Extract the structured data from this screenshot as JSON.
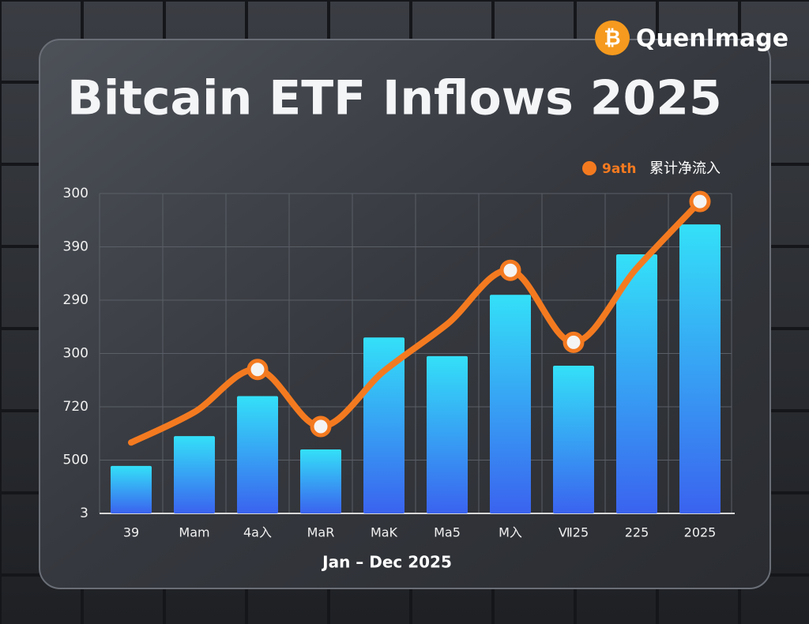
{
  "chart_data": {
    "type": "bar-line",
    "title": "Bitcain ETF Inflows 2025",
    "watermark": "QuenImage",
    "xlabel": "Jan – Dec 2025",
    "categories": [
      "39",
      "Mam",
      "4a入",
      "MaR",
      "MaK",
      "Ma5",
      "M入",
      "Ⅶ25",
      "225",
      "2025"
    ],
    "ylim": [
      0,
      6
    ],
    "yticks": [
      {
        "value": 0,
        "label": "3"
      },
      {
        "value": 1,
        "label": "500"
      },
      {
        "value": 2,
        "label": "720"
      },
      {
        "value": 3,
        "label": "300"
      },
      {
        "value": 4,
        "label": "290"
      },
      {
        "value": 5,
        "label": "390"
      },
      {
        "value": 6,
        "label": "300"
      }
    ],
    "grid": true,
    "legend_note": "累计净流入",
    "series": [
      {
        "name": "累计净流入",
        "kind": "bar",
        "color": "#2f8cf5",
        "values": [
          0.89,
          1.45,
          2.2,
          1.2,
          3.3,
          2.95,
          4.1,
          2.77,
          4.86,
          5.42
        ]
      },
      {
        "name": "9ath",
        "kind": "line",
        "color": "#f47a20",
        "values": [
          1.33,
          1.9,
          2.7,
          1.63,
          2.67,
          3.55,
          4.56,
          3.21,
          4.6,
          5.85
        ]
      }
    ]
  }
}
